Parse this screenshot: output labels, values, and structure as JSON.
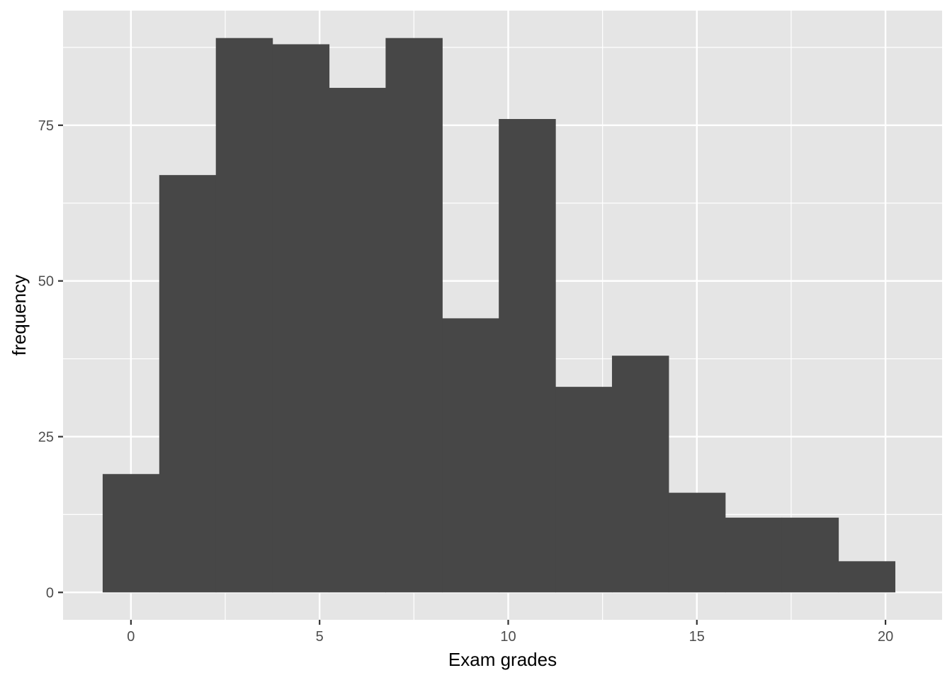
{
  "chart_data": {
    "type": "bar",
    "subtype": "histogram",
    "xlabel": "Exam grades",
    "ylabel": "frequency",
    "xlim": [
      -1.8,
      21.5
    ],
    "ylim": [
      -4.4,
      93.4
    ],
    "x_ticks": [
      0,
      5,
      10,
      15,
      20
    ],
    "y_ticks": [
      0,
      25,
      50,
      75
    ],
    "bin_width": 1.5,
    "bins": [
      {
        "x0": -0.75,
        "x1": 0.75,
        "count": 19
      },
      {
        "x0": 0.75,
        "x1": 2.25,
        "count": 67
      },
      {
        "x0": 2.25,
        "x1": 3.75,
        "count": 89
      },
      {
        "x0": 3.75,
        "x1": 5.25,
        "count": 88
      },
      {
        "x0": 5.25,
        "x1": 6.75,
        "count": 81
      },
      {
        "x0": 6.75,
        "x1": 8.25,
        "count": 89
      },
      {
        "x0": 8.25,
        "x1": 9.75,
        "count": 44
      },
      {
        "x0": 9.75,
        "x1": 11.25,
        "count": 76
      },
      {
        "x0": 11.25,
        "x1": 12.75,
        "count": 33
      },
      {
        "x0": 12.75,
        "x1": 14.25,
        "count": 38
      },
      {
        "x0": 14.25,
        "x1": 15.75,
        "count": 16
      },
      {
        "x0": 15.75,
        "x1": 17.25,
        "count": 12
      },
      {
        "x0": 17.25,
        "x1": 18.75,
        "count": 12
      },
      {
        "x0": 18.75,
        "x1": 20.25,
        "count": 5
      }
    ],
    "grid": true,
    "legend": "none",
    "colors": {
      "panel_background": "#e5e5e5",
      "grid_major": "#ffffff",
      "bar_fill": "#474747",
      "tick_text": "#4d4d4d",
      "axis_title_text": "#000000"
    }
  }
}
